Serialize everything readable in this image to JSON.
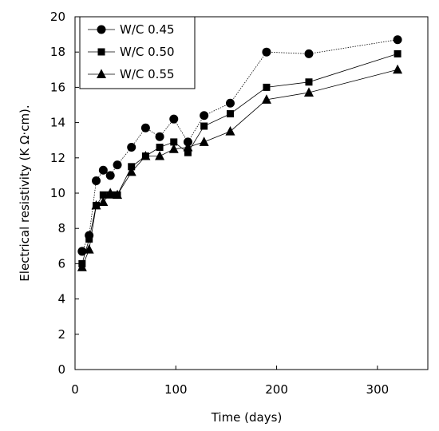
{
  "chart_data": {
    "type": "line",
    "title": "",
    "xlabel": "Time (days)",
    "ylabel": "Electrical resistivity (K Ω·cm).",
    "xlim": [
      0,
      350
    ],
    "ylim": [
      0,
      20
    ],
    "xticks": [
      0,
      100,
      200,
      300
    ],
    "yticks": [
      0,
      2,
      4,
      6,
      8,
      10,
      12,
      14,
      16,
      18,
      20
    ],
    "grid": false,
    "legend_position": "top-left",
    "series": [
      {
        "name": "W/C 0.45",
        "marker": "circle",
        "color": "#000000",
        "x": [
          7,
          14,
          21,
          28,
          35,
          42,
          56,
          70,
          84,
          98,
          112,
          128,
          154,
          190,
          232,
          320
        ],
        "y": [
          6.7,
          7.6,
          10.7,
          11.3,
          11.0,
          11.6,
          12.6,
          13.7,
          13.2,
          14.2,
          12.9,
          14.4,
          15.1,
          18.0,
          17.9,
          18.7
        ]
      },
      {
        "name": "W/C 0.50",
        "marker": "square",
        "color": "#000000",
        "x": [
          7,
          14,
          21,
          28,
          35,
          42,
          56,
          70,
          84,
          98,
          112,
          128,
          154,
          190,
          232,
          320
        ],
        "y": [
          6.0,
          7.4,
          9.3,
          9.9,
          9.9,
          9.9,
          11.5,
          12.1,
          12.6,
          12.9,
          12.3,
          13.8,
          14.5,
          16.0,
          16.3,
          17.9
        ]
      },
      {
        "name": "W/C 0.55",
        "marker": "triangle",
        "color": "#000000",
        "x": [
          7,
          14,
          21,
          28,
          35,
          42,
          56,
          70,
          84,
          98,
          112,
          128,
          154,
          190,
          232,
          320
        ],
        "y": [
          5.8,
          6.8,
          9.3,
          9.5,
          10.0,
          9.9,
          11.2,
          12.1,
          12.1,
          12.5,
          12.6,
          12.9,
          13.5,
          15.3,
          15.7,
          17.0
        ]
      }
    ]
  }
}
